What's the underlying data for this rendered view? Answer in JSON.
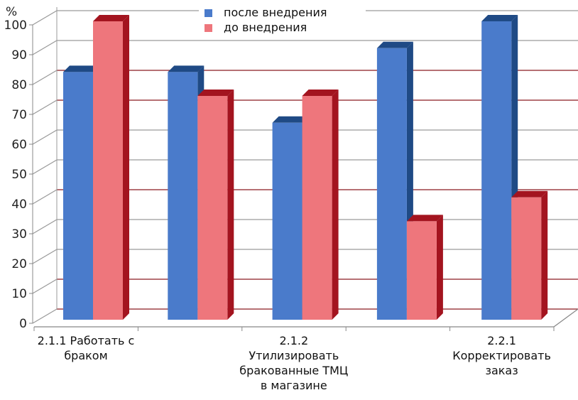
{
  "chart_data": {
    "type": "bar",
    "title": "",
    "ylabel": "%",
    "xlabel": "",
    "ylim": [
      0,
      100
    ],
    "yticks": [
      0,
      10,
      20,
      30,
      40,
      50,
      60,
      70,
      80,
      90,
      100
    ],
    "categories": [
      "2.1.1 Работать с браком",
      "",
      "2.1.2 Утилизировать бракованные ТМЦ в магазине",
      "",
      "2.2.1 Корректировать заказ"
    ],
    "category_labels_shown": [
      {
        "index": 0,
        "lines": [
          "2.1.1 Работать с",
          "браком"
        ]
      },
      {
        "index": 2,
        "lines": [
          "2.1.2",
          "Утилизировать",
          "бракованные ТМЦ",
          "в магазине"
        ]
      },
      {
        "index": 4,
        "lines": [
          "2.2.1",
          "Корректировать",
          "заказ"
        ]
      }
    ],
    "series": [
      {
        "name": "после внедрения",
        "values": [
          83,
          83,
          66,
          91,
          100
        ],
        "color": "#4a7bcb",
        "side": "#1f4a85"
      },
      {
        "name": "до внедрения",
        "values": [
          100,
          75,
          75,
          33,
          41
        ],
        "color": "#ee767c",
        "side": "#a3141f"
      }
    ],
    "legend_position": "top-center",
    "grid": true
  }
}
